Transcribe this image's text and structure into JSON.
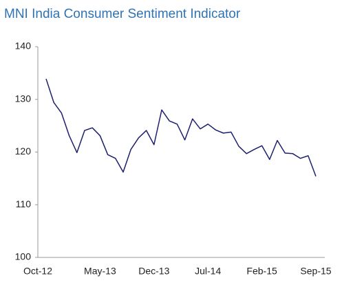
{
  "chart_data": {
    "type": "line",
    "title": "MNI India Consumer Sentiment Indicator",
    "categories": [
      "Oct-12",
      null,
      null,
      null,
      null,
      null,
      null,
      "May-13",
      null,
      null,
      null,
      null,
      null,
      null,
      "Dec-13",
      null,
      null,
      null,
      null,
      null,
      null,
      "Jul-14",
      null,
      null,
      null,
      null,
      null,
      null,
      "Feb-15",
      null,
      null,
      null,
      null,
      null,
      null,
      "Sep-15"
    ],
    "series": [
      {
        "name": "MNI India Consumer Sentiment Indicator",
        "color": "#1c1f6e",
        "values": [
          133.9,
          129.4,
          127.4,
          123.1,
          119.9,
          124.1,
          124.6,
          123.1,
          119.5,
          118.8,
          116.2,
          120.5,
          122.7,
          124.1,
          121.4,
          128.0,
          125.9,
          125.3,
          122.3,
          126.3,
          124.4,
          125.3,
          124.2,
          123.6,
          123.8,
          121.1,
          119.7,
          120.5,
          121.2,
          118.6,
          122.2,
          119.8,
          119.7,
          118.8,
          119.3,
          115.4
        ]
      }
    ],
    "ylim": [
      100,
      140
    ],
    "yticks": [
      100,
      110,
      120,
      130,
      140
    ],
    "grid": false
  }
}
